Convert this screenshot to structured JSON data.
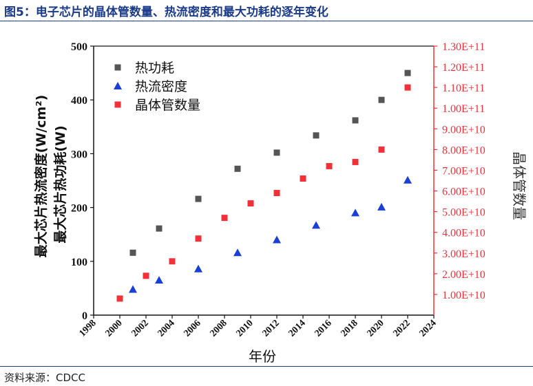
{
  "figure_title": "图5：电子芯片的晶体管数量、热流密度和最大功耗的逐年变化",
  "source_note": "资料来源：CDCC",
  "colors": {
    "power": "#555555",
    "heatflux": "#1a3fd6",
    "transistors": "#f2303a",
    "title": "#1a3a8a",
    "right_axis": "#f2303a"
  },
  "chart_data": {
    "type": "scatter",
    "xlabel": "年份",
    "ylabel_lines": [
      "最大芯片热功耗(W)",
      "最大芯片热流密度(W/cm²)"
    ],
    "y2label": "晶体管数量",
    "xlim": [
      1998,
      2024
    ],
    "ylim": [
      0,
      500
    ],
    "y2lim": [
      0,
      130000000000
    ],
    "x_ticks": [
      "1998",
      "2000",
      "2002",
      "2004",
      "2006",
      "2008",
      "2010",
      "2012",
      "2014",
      "2016",
      "2018",
      "2020",
      "2022",
      "2024"
    ],
    "y_ticks": [
      "0",
      "100",
      "200",
      "300",
      "400",
      "500"
    ],
    "y2_ticks": [
      "1.00E+10",
      "2.00E+10",
      "3.00E+10",
      "4.00E+10",
      "5.00E+10",
      "6.00E+10",
      "7.00E+10",
      "8.00E+10",
      "9.00E+10",
      "1.00E+11",
      "1.10E+11",
      "1.20E+11",
      "1.30E+11"
    ],
    "legend_position": "top-left",
    "series": [
      {
        "name": "热功耗",
        "marker": "square",
        "axis": "left",
        "x": [
          2001,
          2003,
          2006,
          2009,
          2012,
          2015,
          2018,
          2020,
          2022
        ],
        "y": [
          116,
          161,
          216,
          272,
          302,
          334,
          362,
          400,
          450
        ]
      },
      {
        "name": "热流密度",
        "marker": "triangle",
        "axis": "left",
        "x": [
          2001,
          2003,
          2006,
          2009,
          2012,
          2015,
          2018,
          2020,
          2022
        ],
        "y": [
          48,
          65,
          86,
          116,
          140,
          167,
          190,
          201,
          251
        ]
      },
      {
        "name": "晶体管数量",
        "marker": "square",
        "axis": "right",
        "x": [
          2000,
          2002,
          2004,
          2006,
          2008,
          2010,
          2012,
          2014,
          2016,
          2018,
          2020,
          2022
        ],
        "y": [
          8000000000,
          19000000000,
          26000000000,
          37000000000,
          47000000000,
          54000000000,
          59000000000,
          66000000000,
          72000000000,
          74000000000,
          80000000000,
          110000000000
        ]
      }
    ]
  }
}
